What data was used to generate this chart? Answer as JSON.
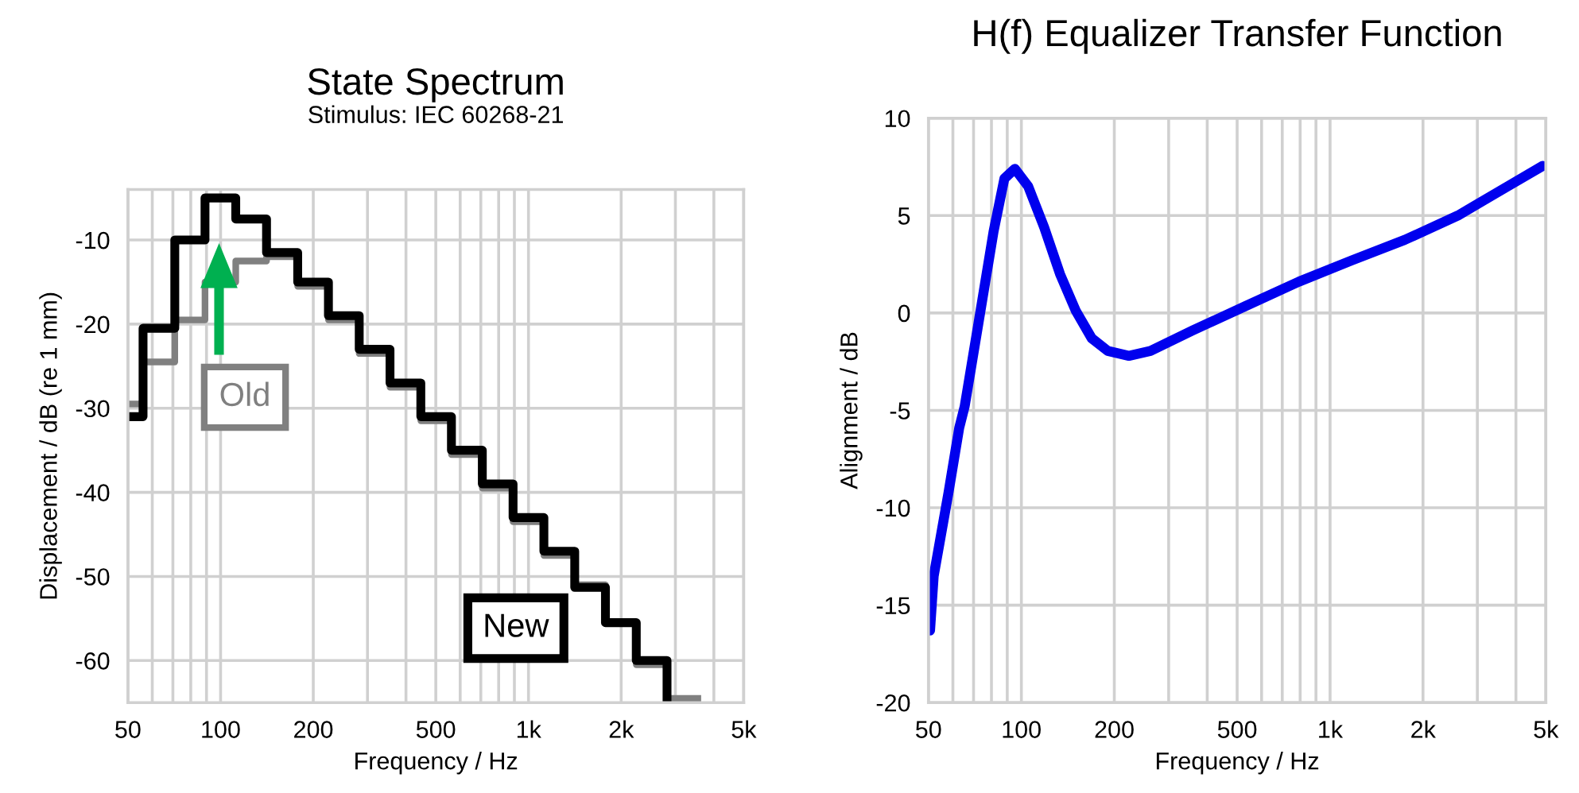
{
  "chart_data": [
    {
      "type": "step",
      "title": "State Spectrum",
      "subtitle": "Stimulus: IEC 60268-21",
      "xlabel": "Frequency / Hz",
      "ylabel": "Displacement / dB (re 1 mm)",
      "log": "x",
      "grid": true,
      "xlim": [
        50,
        5000
      ],
      "ylim": [
        -65,
        -4
      ],
      "xticks": [
        50,
        {
          "value": 60,
          "label": null
        },
        {
          "value": 70,
          "label": null
        },
        {
          "value": 80,
          "label": null
        },
        {
          "value": 90,
          "label": null
        },
        100,
        200,
        {
          "value": 300,
          "label": null
        },
        {
          "value": 400,
          "label": null
        },
        500,
        {
          "value": 600,
          "label": null
        },
        {
          "value": 700,
          "label": null
        },
        {
          "value": 800,
          "label": null
        },
        {
          "value": 900,
          "label": null
        },
        {
          "value": 1000,
          "label": "1k"
        },
        {
          "value": 2000,
          "label": "2k"
        },
        {
          "value": 3000,
          "label": null
        },
        {
          "value": 4000,
          "label": null
        },
        {
          "value": 5000,
          "label": "5k"
        }
      ],
      "yticks": [
        -60,
        -50,
        -40,
        -30,
        -20,
        -10
      ],
      "series": [
        {
          "name": "Old",
          "color": "#808080",
          "x": [
            50,
            56,
            71,
            89,
            112,
            141,
            178,
            224,
            282,
            355,
            447,
            562,
            708,
            891,
            1122,
            1413,
            1778,
            2239,
            2818,
            3548
          ],
          "values": [
            -29.5,
            -24.5,
            -19.5,
            -15,
            -12.5,
            -12,
            -15.5,
            -19.5,
            -23.5,
            -27.5,
            -31.5,
            -35.5,
            -39.5,
            -43.5,
            -47.5,
            -51,
            -55.5,
            -60.5,
            -64.5,
            -64.5
          ]
        },
        {
          "name": "New",
          "color": "#000000",
          "x": [
            50,
            56,
            71,
            89,
            112,
            141,
            178,
            224,
            282,
            355,
            447,
            562,
            708,
            891,
            1122,
            1413,
            1778,
            2239,
            2818
          ],
          "values": [
            -31,
            -20.5,
            -10,
            -5,
            -7.5,
            -11.5,
            -15,
            -19,
            -23,
            -27,
            -31,
            -35,
            -39,
            -43,
            -47,
            -51.3,
            -55.5,
            -60,
            -65
          ]
        }
      ]
    },
    {
      "type": "line",
      "title": "H(f) Equalizer Transfer Function",
      "xlabel": "Frequency / Hz",
      "ylabel": "Alignment / dB",
      "log": "x",
      "grid": true,
      "xlim": [
        50,
        5000
      ],
      "ylim": [
        -20,
        10
      ],
      "xticks": [
        50,
        {
          "value": 60,
          "label": null
        },
        {
          "value": 70,
          "label": null
        },
        {
          "value": 80,
          "label": null
        },
        {
          "value": 90,
          "label": null
        },
        100,
        200,
        {
          "value": 300,
          "label": null
        },
        {
          "value": 400,
          "label": null
        },
        500,
        {
          "value": 600,
          "label": null
        },
        {
          "value": 700,
          "label": null
        },
        {
          "value": 800,
          "label": null
        },
        {
          "value": 900,
          "label": null
        },
        {
          "value": 1000,
          "label": "1k"
        },
        {
          "value": 2000,
          "label": "2k"
        },
        {
          "value": 3000,
          "label": null
        },
        {
          "value": 4000,
          "label": null
        },
        {
          "value": 5000,
          "label": "5k"
        }
      ],
      "yticks": [
        -20,
        -15,
        -10,
        -5,
        0,
        5,
        10
      ],
      "series": [
        {
          "color": "#0000ee",
          "x": [
            50.6,
            52,
            58.1,
            62.9,
            65.5,
            72.3,
            81.3,
            88.1,
            95.3,
            105.2,
            118.5,
            133.4,
            150.2,
            169,
            190.5,
            223,
            262,
            358.6,
            532,
            791,
            1175,
            1745,
            2594,
            3854,
            4886
          ],
          "values": [
            -16.3,
            -13.5,
            -9.2,
            -5.9,
            -4.8,
            -0.7,
            4.2,
            6.9,
            7.4,
            6.5,
            4.4,
            2.0,
            0.1,
            -1.3,
            -1.95,
            -2.2,
            -1.95,
            -0.9,
            0.35,
            1.6,
            2.7,
            3.75,
            5.0,
            6.6,
            7.55
          ]
        }
      ]
    }
  ]
}
